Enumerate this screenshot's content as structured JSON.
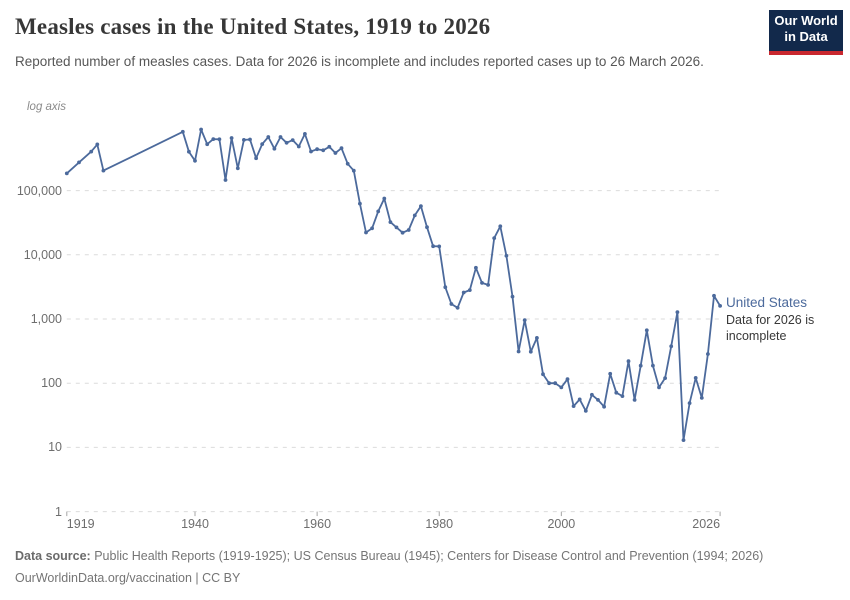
{
  "header": {
    "title": "Measles cases in the United States, 1919 to 2026",
    "subtitle": "Reported number of measles cases. Data for 2026 is incomplete and includes reported cases up to 26 March 2026.",
    "logo_line1": "Our World",
    "logo_line2": "in Data"
  },
  "chart": {
    "axis_note": "log axis",
    "entity_label": "United States",
    "entity_note": "Data for 2026 is incomplete"
  },
  "footer": {
    "source_label": "Data source:",
    "source_text": " Public Health Reports (1919-1925); US Census Bureau (1945); Centers for Disease Control and Prevention (1994; 2026)",
    "link_line": "OurWorldinData.org/vaccination | CC BY"
  },
  "chart_data": {
    "type": "line",
    "title": "Measles cases in the United States, 1919 to 2026",
    "xlabel": "",
    "ylabel": "log axis",
    "y_scale": "log",
    "x_range": [
      1919,
      2026
    ],
    "y_range": [
      1,
      1000000
    ],
    "grid": "dashed-horizontal",
    "legend_position": "right-of-line-end",
    "x_ticks": [
      1919,
      1940,
      1960,
      1980,
      2000,
      2026
    ],
    "y_ticks": [
      1,
      10,
      100,
      1000,
      10000,
      100000
    ],
    "y_tick_labels": [
      "1",
      "10",
      "100",
      "1,000",
      "10,000",
      "100,000"
    ],
    "colors": {
      "line": "#4C6A9C",
      "grid": "#dbdbdb",
      "tick": "#a5a5a5",
      "axis_text": "#6e6e6e"
    },
    "series": [
      {
        "name": "United States",
        "color": "#4C6A9C",
        "note": "Data for 2026 is incomplete",
        "points": [
          [
            1919,
            185000
          ],
          [
            1921,
            275000
          ],
          [
            1923,
            405000
          ],
          [
            1924,
            525000
          ],
          [
            1925,
            205000
          ],
          [
            1938,
            822811
          ],
          [
            1939,
            404271
          ],
          [
            1940,
            291162
          ],
          [
            1941,
            894134
          ],
          [
            1942,
            527672
          ],
          [
            1943,
            633627
          ],
          [
            1944,
            630291
          ],
          [
            1945,
            146013
          ],
          [
            1946,
            659843
          ],
          [
            1947,
            222375
          ],
          [
            1948,
            615104
          ],
          [
            1949,
            625281
          ],
          [
            1950,
            319124
          ],
          [
            1951,
            530118
          ],
          [
            1952,
            683077
          ],
          [
            1953,
            449146
          ],
          [
            1954,
            682720
          ],
          [
            1955,
            555156
          ],
          [
            1956,
            611936
          ],
          [
            1957,
            486799
          ],
          [
            1958,
            763094
          ],
          [
            1959,
            406162
          ],
          [
            1960,
            441703
          ],
          [
            1961,
            423919
          ],
          [
            1962,
            481530
          ],
          [
            1963,
            385156
          ],
          [
            1964,
            458083
          ],
          [
            1965,
            261904
          ],
          [
            1966,
            204136
          ],
          [
            1967,
            62705
          ],
          [
            1968,
            22231
          ],
          [
            1969,
            25826
          ],
          [
            1970,
            47351
          ],
          [
            1971,
            75290
          ],
          [
            1972,
            32275
          ],
          [
            1973,
            26690
          ],
          [
            1974,
            22094
          ],
          [
            1975,
            24374
          ],
          [
            1976,
            41126
          ],
          [
            1977,
            57345
          ],
          [
            1978,
            26871
          ],
          [
            1979,
            13597
          ],
          [
            1980,
            13506
          ],
          [
            1981,
            3124
          ],
          [
            1982,
            1714
          ],
          [
            1983,
            1497
          ],
          [
            1984,
            2587
          ],
          [
            1985,
            2822
          ],
          [
            1986,
            6282
          ],
          [
            1987,
            3655
          ],
          [
            1988,
            3396
          ],
          [
            1989,
            18193
          ],
          [
            1990,
            27786
          ],
          [
            1991,
            9643
          ],
          [
            1992,
            2237
          ],
          [
            1993,
            312
          ],
          [
            1994,
            963
          ],
          [
            1995,
            309
          ],
          [
            1996,
            508
          ],
          [
            1997,
            138
          ],
          [
            1998,
            100
          ],
          [
            1999,
            100
          ],
          [
            2000,
            86
          ],
          [
            2001,
            116
          ],
          [
            2002,
            44
          ],
          [
            2003,
            56
          ],
          [
            2004,
            37
          ],
          [
            2005,
            66
          ],
          [
            2006,
            55
          ],
          [
            2007,
            43
          ],
          [
            2008,
            140
          ],
          [
            2009,
            71
          ],
          [
            2010,
            63
          ],
          [
            2011,
            220
          ],
          [
            2012,
            55
          ],
          [
            2013,
            187
          ],
          [
            2014,
            667
          ],
          [
            2015,
            188
          ],
          [
            2016,
            86
          ],
          [
            2017,
            120
          ],
          [
            2018,
            375
          ],
          [
            2019,
            1282
          ],
          [
            2020,
            13
          ],
          [
            2021,
            49
          ],
          [
            2022,
            121
          ],
          [
            2023,
            59
          ],
          [
            2024,
            285
          ],
          [
            2025,
            2300
          ],
          [
            2026,
            1600
          ]
        ]
      }
    ]
  }
}
